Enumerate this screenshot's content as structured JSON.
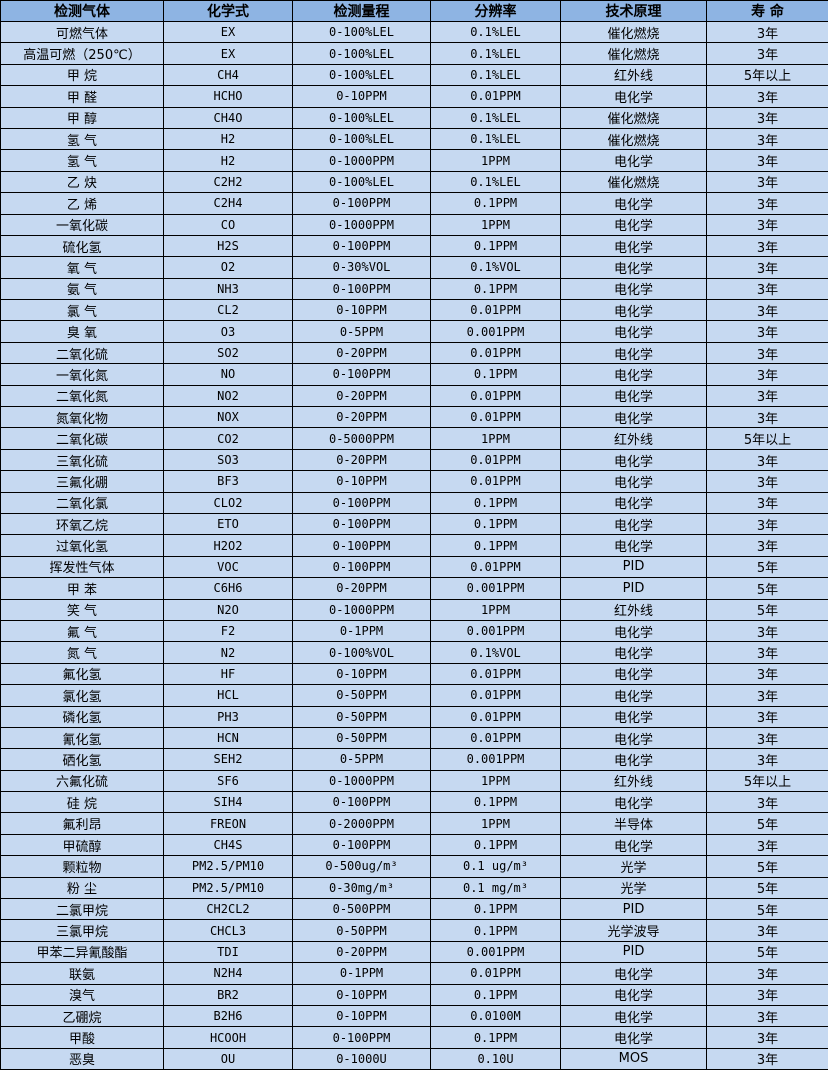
{
  "table": {
    "headers": [
      "检测气体",
      "化学式",
      "检测量程",
      "分辨率",
      "技术原理",
      "寿 命"
    ],
    "rows": [
      [
        "可燃气体",
        "EX",
        "0-100%LEL",
        "0.1%LEL",
        "催化燃烧",
        "3年"
      ],
      [
        "高温可燃（250℃）",
        "EX",
        "0-100%LEL",
        "0.1%LEL",
        "催化燃烧",
        "3年"
      ],
      [
        "甲 烷",
        "CH4",
        "0-100%LEL",
        "0.1%LEL",
        "红外线",
        "5年以上"
      ],
      [
        "甲 醛",
        "HCHO",
        "0-10PPM",
        "0.01PPM",
        "电化学",
        "3年"
      ],
      [
        "甲 醇",
        "CH4O",
        "0-100%LEL",
        "0.1%LEL",
        "催化燃烧",
        "3年"
      ],
      [
        "氢 气",
        "H2",
        "0-100%LEL",
        "0.1%LEL",
        "催化燃烧",
        "3年"
      ],
      [
        "氢 气",
        "H2",
        "0-1000PPM",
        "1PPM",
        "电化学",
        "3年"
      ],
      [
        "乙 炔",
        "C2H2",
        "0-100%LEL",
        "0.1%LEL",
        "催化燃烧",
        "3年"
      ],
      [
        "乙 烯",
        "C2H4",
        "0-100PPM",
        "0.1PPM",
        "电化学",
        "3年"
      ],
      [
        "一氧化碳",
        "CO",
        "0-1000PPM",
        "1PPM",
        "电化学",
        "3年"
      ],
      [
        "硫化氢",
        "H2S",
        "0-100PPM",
        "0.1PPM",
        "电化学",
        "3年"
      ],
      [
        "氧 气",
        "O2",
        "0-30%VOL",
        "0.1%VOL",
        "电化学",
        "3年"
      ],
      [
        "氨 气",
        "NH3",
        "0-100PPM",
        "0.1PPM",
        "电化学",
        "3年"
      ],
      [
        "氯 气",
        "CL2",
        "0-10PPM",
        "0.01PPM",
        "电化学",
        "3年"
      ],
      [
        "臭 氧",
        "O3",
        "0-5PPM",
        "0.001PPM",
        "电化学",
        "3年"
      ],
      [
        "二氧化硫",
        "SO2",
        "0-20PPM",
        "0.01PPM",
        "电化学",
        "3年"
      ],
      [
        "一氧化氮",
        "NO",
        "0-100PPM",
        "0.1PPM",
        "电化学",
        "3年"
      ],
      [
        "二氧化氮",
        "NO2",
        "0-20PPM",
        "0.01PPM",
        "电化学",
        "3年"
      ],
      [
        "氮氧化物",
        "NOX",
        "0-20PPM",
        "0.01PPM",
        "电化学",
        "3年"
      ],
      [
        "二氧化碳",
        "CO2",
        "0-5000PPM",
        "1PPM",
        "红外线",
        "5年以上"
      ],
      [
        "三氧化硫",
        "SO3",
        "0-20PPM",
        "0.01PPM",
        "电化学",
        "3年"
      ],
      [
        "三氟化硼",
        "BF3",
        "0-10PPM",
        "0.01PPM",
        "电化学",
        "3年"
      ],
      [
        "二氧化氯",
        "CLO2",
        "0-100PPM",
        "0.1PPM",
        "电化学",
        "3年"
      ],
      [
        "环氧乙烷",
        "ETO",
        "0-100PPM",
        "0.1PPM",
        "电化学",
        "3年"
      ],
      [
        "过氧化氢",
        "H2O2",
        "0-100PPM",
        "0.1PPM",
        "电化学",
        "3年"
      ],
      [
        "挥发性气体",
        "VOC",
        "0-100PPM",
        "0.01PPM",
        "PID",
        "5年"
      ],
      [
        "甲 苯",
        "C6H6",
        "0-20PPM",
        "0.001PPM",
        "PID",
        "5年"
      ],
      [
        "笑 气",
        "N2O",
        "0-1000PPM",
        "1PPM",
        "红外线",
        "5年"
      ],
      [
        "氟 气",
        "F2",
        "0-1PPM",
        "0.001PPM",
        "电化学",
        "3年"
      ],
      [
        "氮 气",
        "N2",
        "0-100%VOL",
        "0.1%VOL",
        "电化学",
        "3年"
      ],
      [
        "氟化氢",
        "HF",
        "0-10PPM",
        "0.01PPM",
        "电化学",
        "3年"
      ],
      [
        "氯化氢",
        "HCL",
        "0-50PPM",
        "0.01PPM",
        "电化学",
        "3年"
      ],
      [
        "磷化氢",
        "PH3",
        "0-50PPM",
        "0.01PPM",
        "电化学",
        "3年"
      ],
      [
        "氰化氢",
        "HCN",
        "0-50PPM",
        "0.01PPM",
        "电化学",
        "3年"
      ],
      [
        "硒化氢",
        "SEH2",
        "0-5PPM",
        "0.001PPM",
        "电化学",
        "3年"
      ],
      [
        "六氟化硫",
        "SF6",
        "0-1000PPM",
        "1PPM",
        "红外线",
        "5年以上"
      ],
      [
        "硅 烷",
        "SIH4",
        "0-100PPM",
        "0.1PPM",
        "电化学",
        "3年"
      ],
      [
        "氟利昂",
        "FREON",
        "0-2000PPM",
        "1PPM",
        "半导体",
        "5年"
      ],
      [
        "甲硫醇",
        "CH4S",
        "0-100PPM",
        "0.1PPM",
        "电化学",
        "3年"
      ],
      [
        "颗粒物",
        "PM2.5/PM10",
        "0-500ug/m³",
        "0.1 ug/m³",
        "光学",
        "5年"
      ],
      [
        "粉 尘",
        "PM2.5/PM10",
        "0-30mg/m³",
        "0.1 mg/m³",
        "光学",
        "5年"
      ],
      [
        "二氯甲烷",
        "CH2CL2",
        "0-500PPM",
        "0.1PPM",
        "PID",
        "5年"
      ],
      [
        "三氯甲烷",
        "CHCL3",
        "0-50PPM",
        "0.1PPM",
        "光学波导",
        "3年"
      ],
      [
        "甲苯二异氰酸酯",
        "TDI",
        "0-20PPM",
        "0.001PPM",
        "PID",
        "5年"
      ],
      [
        "联氨",
        "N2H4",
        "0-1PPM",
        "0.01PPM",
        "电化学",
        "3年"
      ],
      [
        "溴气",
        "BR2",
        "0-10PPM",
        "0.1PPM",
        "电化学",
        "3年"
      ],
      [
        "乙硼烷",
        "B2H6",
        "0-10PPM",
        "0.0100M",
        "电化学",
        "3年"
      ],
      [
        "甲酸",
        "HCOOH",
        "0-100PPM",
        "0.1PPM",
        "电化学",
        "3年"
      ],
      [
        "恶臭",
        "OU",
        "0-1000U",
        "0.10U",
        "MOS",
        "3年"
      ]
    ]
  },
  "colors": {
    "header_bg": "#8eb4e3",
    "row_bg": "#c6d9f1",
    "border": "#000000"
  }
}
